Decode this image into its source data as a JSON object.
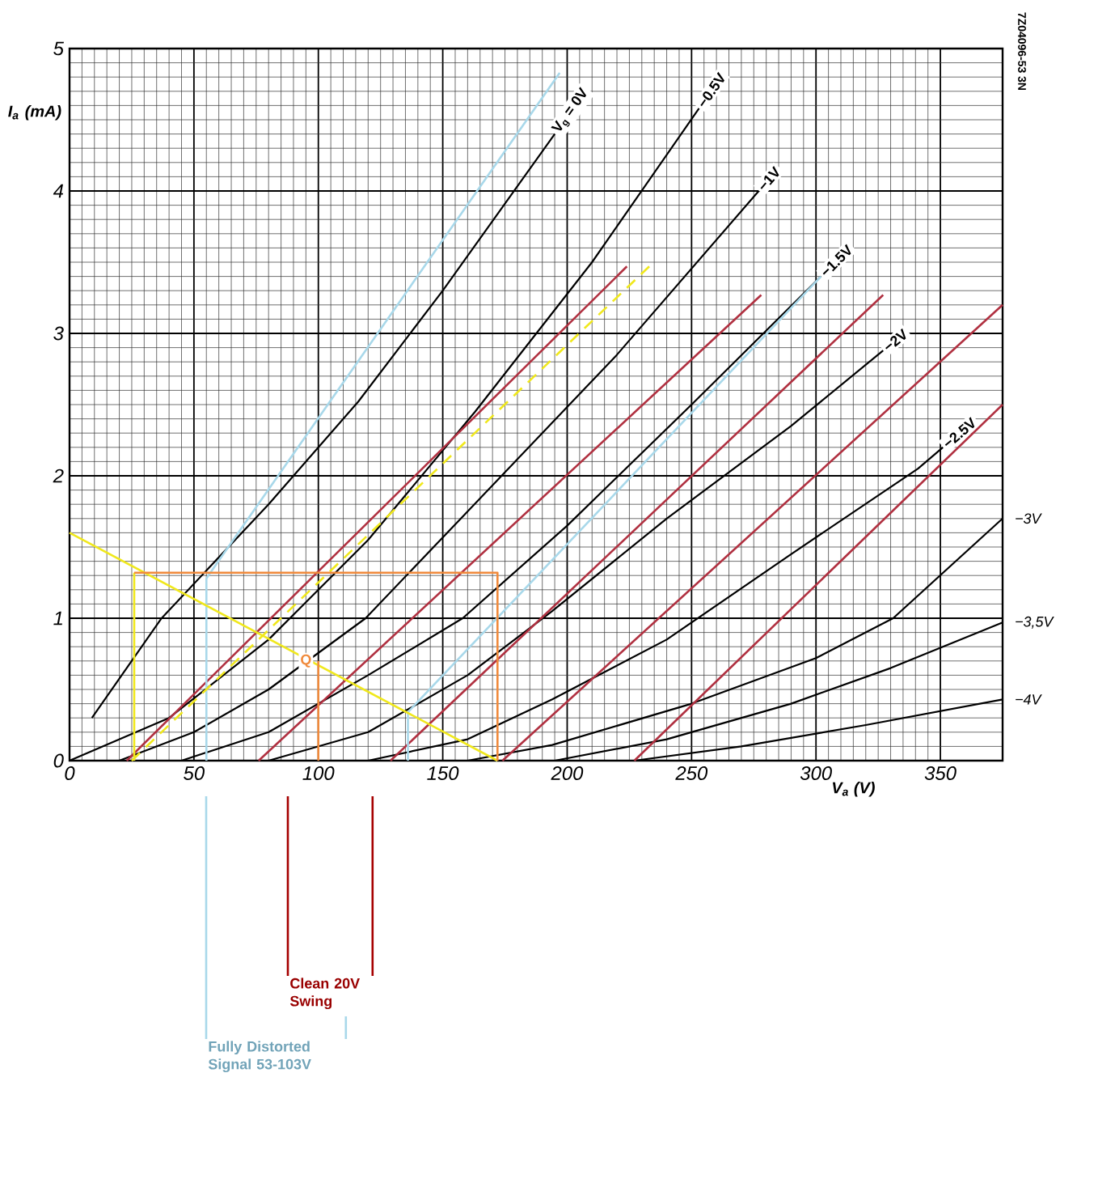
{
  "chart_data": {
    "type": "line",
    "xlabel": "V$_{a}$ (V)",
    "ylabel": "I$_{a}$ (mA)",
    "xlim": [
      0,
      375
    ],
    "ylim": [
      0,
      5
    ],
    "xticks": [
      0,
      50,
      100,
      150,
      200,
      250,
      300,
      350
    ],
    "yticks": [
      0,
      1,
      2,
      3,
      4,
      5
    ],
    "grid": true,
    "series": [
      {
        "name": "V$_{g}$ = 0V",
        "color": "#000000",
        "x": [
          9,
          37,
          80,
          116,
          150,
          195
        ],
        "values": [
          0.3,
          1.0,
          1.8,
          2.52,
          3.3,
          4.4
        ]
      },
      {
        "name": "−0.5V",
        "color": "#000000",
        "x": [
          0,
          40,
          80,
          120,
          163,
          210,
          253
        ],
        "values": [
          0,
          0.3,
          0.85,
          1.55,
          2.45,
          3.5,
          4.58
        ]
      },
      {
        "name": "−1V",
        "color": "#000000",
        "x": [
          20,
          50,
          80,
          119,
          160,
          220,
          277
        ],
        "values": [
          0,
          0.2,
          0.5,
          1.0,
          1.75,
          2.85,
          4.0
        ]
      },
      {
        "name": "−1.5V",
        "color": "#000000",
        "x": [
          45,
          80,
          120,
          158,
          200,
          250,
          302
        ],
        "values": [
          0,
          0.2,
          0.6,
          1.0,
          1.65,
          2.5,
          3.4
        ]
      },
      {
        "name": "−2V",
        "color": "#000000",
        "x": [
          80,
          120,
          160,
          194,
          240,
          290,
          327
        ],
        "values": [
          0,
          0.2,
          0.6,
          1.05,
          1.7,
          2.35,
          2.88
        ]
      },
      {
        "name": "−2.5V",
        "color": "#000000",
        "x": [
          120,
          160,
          194,
          240,
          290,
          341,
          351
        ],
        "values": [
          0,
          0.15,
          0.43,
          0.85,
          1.45,
          2.05,
          2.2
        ]
      },
      {
        "name": "−3V",
        "color": "#000000",
        "x": [
          160,
          194,
          250,
          300,
          331,
          375
        ],
        "values": [
          0,
          0.11,
          0.4,
          0.72,
          1.0,
          1.7
        ]
      },
      {
        "name": "−3,5V",
        "color": "#000000",
        "x": [
          195,
          240,
          290,
          330,
          375
        ],
        "values": [
          0,
          0.15,
          0.4,
          0.65,
          0.97
        ]
      },
      {
        "name": "−4V",
        "color": "#000000",
        "x": [
          227,
          270,
          320,
          375
        ],
        "values": [
          0,
          0.1,
          0.25,
          0.43
        ]
      },
      {
        "color": "#b03040",
        "x": [
          23,
          224
        ],
        "values": [
          0,
          3.47
        ]
      },
      {
        "color": "#b03040",
        "x": [
          76,
          278
        ],
        "values": [
          0,
          3.27
        ]
      },
      {
        "color": "#b03040",
        "x": [
          129,
          327
        ],
        "values": [
          0,
          3.27
        ]
      },
      {
        "color": "#b03040",
        "x": [
          174,
          375
        ],
        "values": [
          0,
          3.2
        ]
      },
      {
        "color": "#b03040",
        "x": [
          227,
          375
        ],
        "values": [
          0,
          2.5
        ]
      },
      {
        "color": "#a8d8ea",
        "x": [
          55,
          197
        ],
        "values": [
          1.28,
          4.83
        ]
      },
      {
        "color": "#a8d8ea",
        "x": [
          136,
          302
        ],
        "values": [
          0.34,
          3.4
        ]
      },
      {
        "color": "#a8d8ea",
        "x": [
          55,
          55
        ],
        "values": [
          0,
          1.28
        ]
      },
      {
        "color": "#a8d8ea",
        "x": [
          136,
          136
        ],
        "values": [
          0,
          0.34
        ]
      },
      {
        "color": "#f0e81c",
        "x": [
          0,
          172
        ],
        "values": [
          1.6,
          0
        ]
      },
      {
        "color": "#f0e81c",
        "line_style": "dashed",
        "x": [
          25,
          233
        ],
        "values": [
          0,
          3.47
        ]
      },
      {
        "color": "#f0e81c",
        "x": [
          26,
          26
        ],
        "values": [
          0,
          1.32
        ]
      },
      {
        "color": "#f08a3c",
        "x": [
          26,
          172,
          172
        ],
        "values": [
          1.32,
          1.32,
          0
        ]
      },
      {
        "color": "#f08a3c",
        "x": [
          100,
          100
        ],
        "values": [
          0,
          0.7
        ]
      }
    ],
    "annotations": [
      "7Z04096-53 3N",
      "Clean 20V Swing",
      "Fully Distorted Signal 53-103V",
      {
        "text": "Q",
        "x": 100,
        "y": 0.7
      }
    ]
  }
}
